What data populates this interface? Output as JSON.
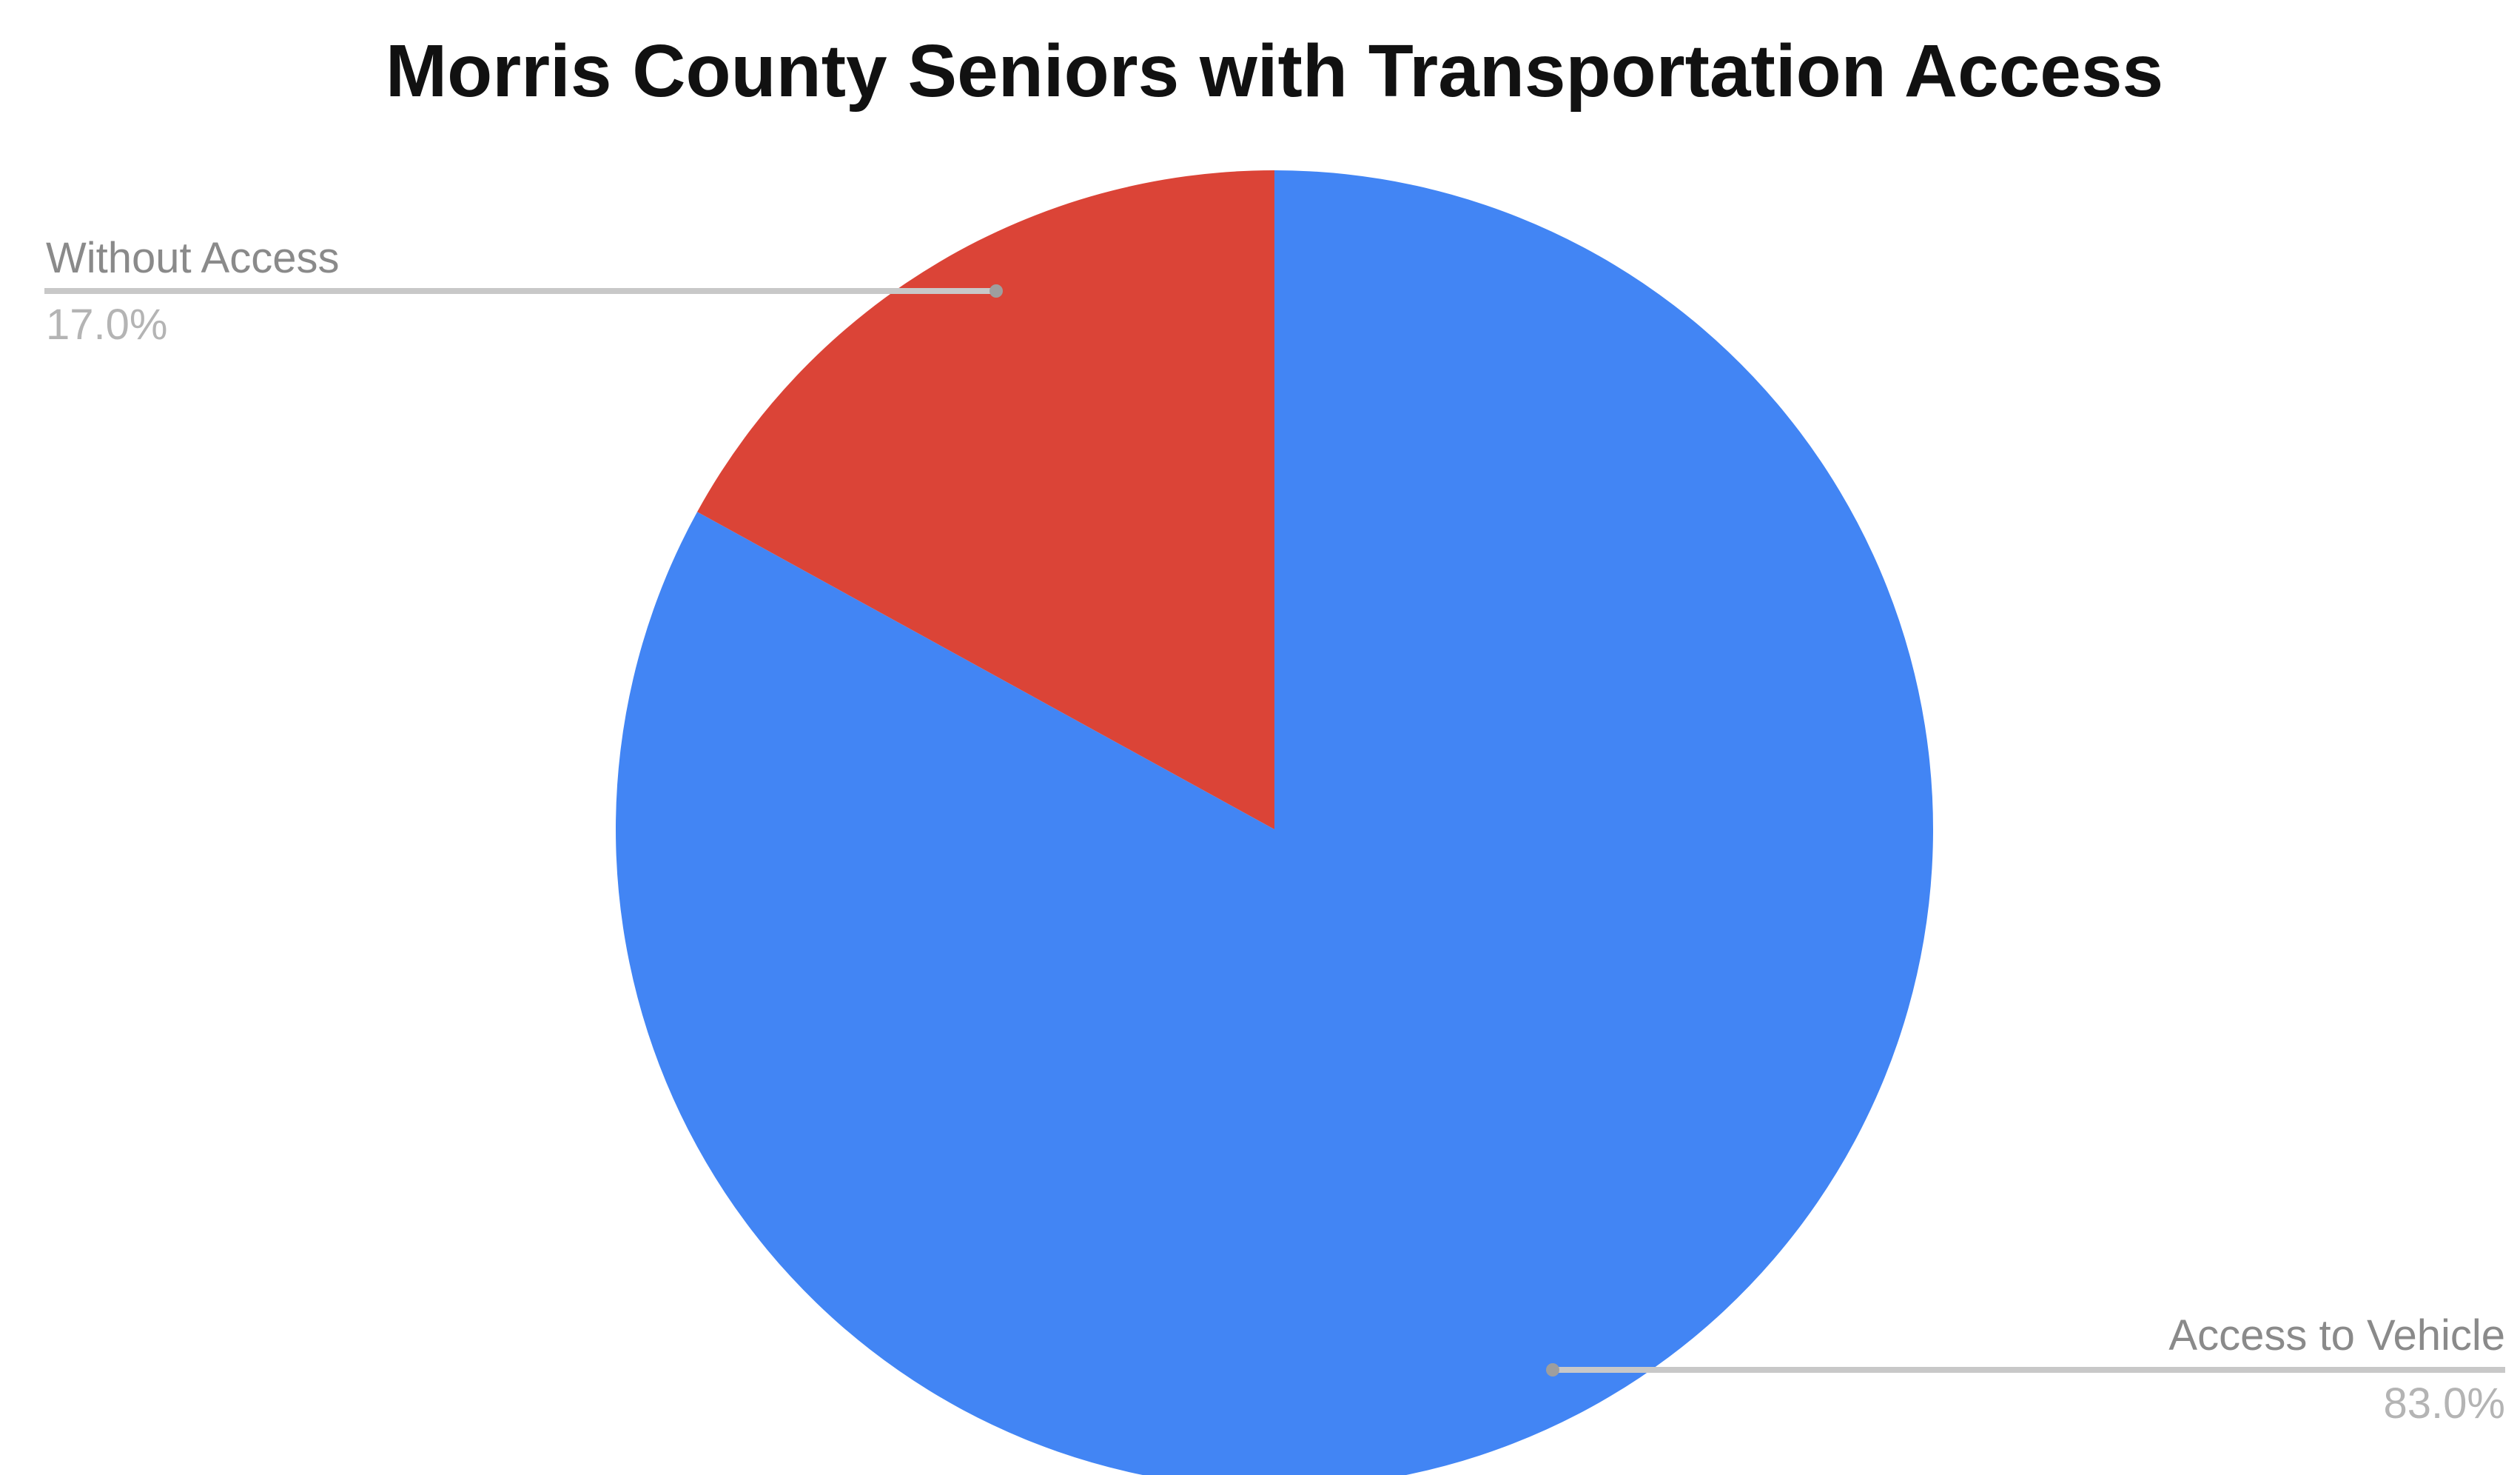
{
  "chart_data": {
    "type": "pie",
    "title": "Morris County Seniors with Transportation Access",
    "start_angle_deg": 0,
    "direction": "clockwise",
    "slices": [
      {
        "name": "Access to Vehicle",
        "value": 83.0,
        "label": "83.0%",
        "color": "#4285f4"
      },
      {
        "name": "Without Access",
        "value": 17.0,
        "label": "17.0%",
        "color": "#db4437"
      }
    ]
  },
  "colors": {
    "leader": "#c8c8c8",
    "leader_dot": "#9e9e9e",
    "label_name": "#8a8a8a",
    "label_value": "#b4b4b4"
  }
}
